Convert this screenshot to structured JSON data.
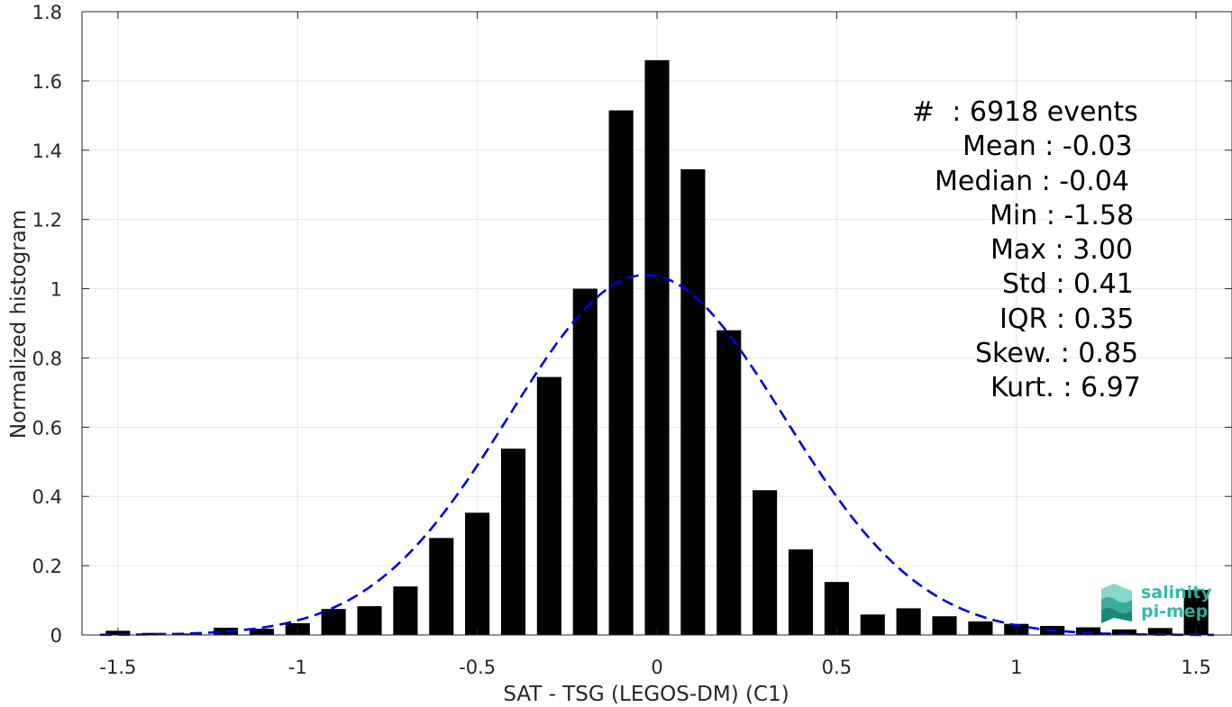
{
  "chart_data": {
    "type": "bar",
    "xlabel": "SAT - TSG (LEGOS-DM) (C1)",
    "ylabel": "Normalized histogram",
    "xlim": [
      -1.6,
      1.6
    ],
    "ylim": [
      0,
      1.8
    ],
    "xticks": [
      -1.5,
      -1,
      -0.5,
      0,
      0.5,
      1,
      1.5
    ],
    "xtick_labels": [
      "-1.5",
      "-1",
      "-0.5",
      "0",
      "0.5",
      "1",
      "1.5"
    ],
    "yticks": [
      0,
      0.2,
      0.4,
      0.6,
      0.8,
      1,
      1.2,
      1.4,
      1.6,
      1.8
    ],
    "ytick_labels": [
      "0",
      "0.2",
      "0.4",
      "0.6",
      "0.8",
      "1",
      "1.2",
      "1.4",
      "1.6",
      "1.8"
    ],
    "grid": true,
    "bin_width": 0.1,
    "bins": [
      {
        "x": -1.5,
        "value": 0.012
      },
      {
        "x": -1.4,
        "value": 0.006
      },
      {
        "x": -1.3,
        "value": 0.004
      },
      {
        "x": -1.2,
        "value": 0.021
      },
      {
        "x": -1.1,
        "value": 0.018
      },
      {
        "x": -1.0,
        "value": 0.034
      },
      {
        "x": -0.9,
        "value": 0.075
      },
      {
        "x": -0.8,
        "value": 0.083
      },
      {
        "x": -0.7,
        "value": 0.14
      },
      {
        "x": -0.6,
        "value": 0.28
      },
      {
        "x": -0.5,
        "value": 0.353
      },
      {
        "x": -0.4,
        "value": 0.538
      },
      {
        "x": -0.3,
        "value": 0.745
      },
      {
        "x": -0.2,
        "value": 1.0
      },
      {
        "x": -0.1,
        "value": 1.515
      },
      {
        "x": 0.0,
        "value": 1.66
      },
      {
        "x": 0.1,
        "value": 1.345
      },
      {
        "x": 0.2,
        "value": 0.88
      },
      {
        "x": 0.3,
        "value": 0.418
      },
      {
        "x": 0.4,
        "value": 0.247
      },
      {
        "x": 0.5,
        "value": 0.153
      },
      {
        "x": 0.6,
        "value": 0.059
      },
      {
        "x": 0.7,
        "value": 0.077
      },
      {
        "x": 0.8,
        "value": 0.054
      },
      {
        "x": 0.9,
        "value": 0.039
      },
      {
        "x": 1.0,
        "value": 0.032
      },
      {
        "x": 1.1,
        "value": 0.026
      },
      {
        "x": 1.2,
        "value": 0.022
      },
      {
        "x": 1.3,
        "value": 0.016
      },
      {
        "x": 1.4,
        "value": 0.02
      },
      {
        "x": 1.5,
        "value": 0.13
      }
    ],
    "fit_curve": {
      "kind": "gaussian",
      "mean": -0.03,
      "std": 0.383,
      "peak": 1.04,
      "style": "dashed",
      "color": "#0000e6"
    },
    "bar_color": "#000000"
  },
  "stats": [
    "#  : 6918 events",
    "Mean : -0.03",
    "Median : -0.04",
    "Min : -1.58",
    "Max : 3.00",
    "Std : 0.41",
    "IQR : 0.35",
    "Skew. : 0.85",
    "Kurt. : 6.97"
  ],
  "logo": {
    "line1": "salinity",
    "line2": "pi-mep",
    "color": "#2ab7a3"
  }
}
